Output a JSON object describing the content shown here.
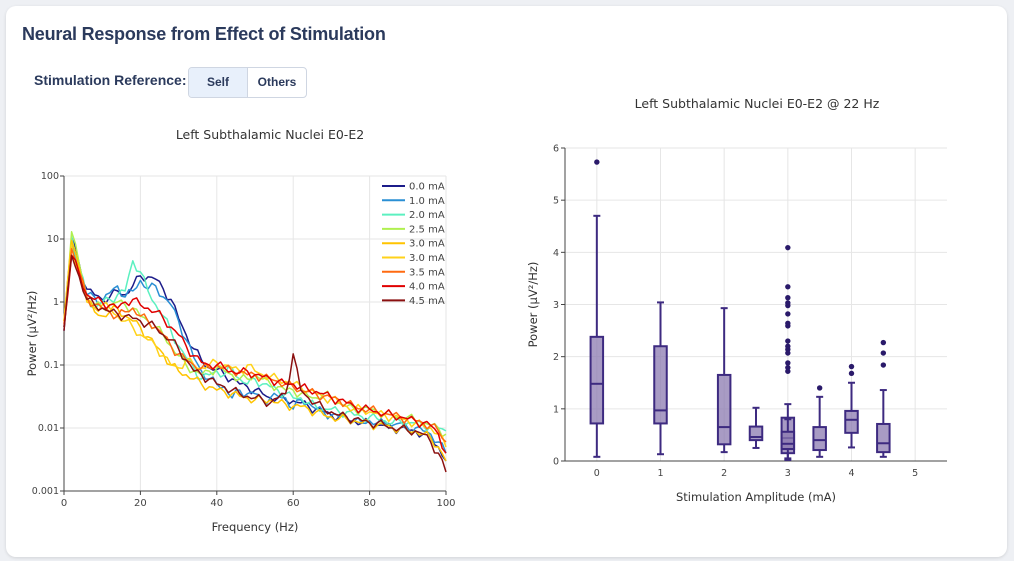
{
  "header": {
    "title": "Neural Response from Effect of Stimulation",
    "reference_label": "Stimulation Reference:",
    "options": [
      {
        "label": "Self",
        "selected": true
      },
      {
        "label": "Others",
        "selected": false
      }
    ]
  },
  "chart_data": [
    {
      "type": "line",
      "title": "Left Subthalamic Nuclei E0-E2",
      "xlabel": "Frequency (Hz)",
      "ylabel": "Power (μV²/Hz)",
      "xlim": [
        0,
        100
      ],
      "ylim": [
        0.001,
        100
      ],
      "yscale": "log",
      "xticks": [
        "0",
        "20",
        "40",
        "60",
        "80",
        "100"
      ],
      "yticks": [
        "0.001",
        "0.01",
        "0.1",
        "1",
        "10",
        "100"
      ],
      "grid": true,
      "legend_position": "top-right",
      "x_step_hz": 2,
      "series": [
        {
          "name": "0.0 mA",
          "color": "#1c1c8a",
          "values": [
            0.35,
            10.5,
            4,
            1.6,
            1.3,
            1.1,
            1.2,
            1.5,
            1.3,
            1.8,
            2.6,
            2.5,
            2.3,
            1.6,
            1.1,
            0.55,
            0.3,
            0.18,
            0.12,
            0.09,
            0.085,
            0.07,
            0.06,
            0.05,
            0.045,
            0.04,
            0.035,
            0.03,
            0.03,
            0.028,
            0.027,
            0.025,
            0.022,
            0.02,
            0.018,
            0.016,
            0.015,
            0.014,
            0.013,
            0.012,
            0.012,
            0.011,
            0.011,
            0.01,
            0.01,
            0.009,
            0.009,
            0.008,
            0.007,
            0.005,
            0.003
          ]
        },
        {
          "name": "1.0 mA",
          "color": "#2a8fd4",
          "values": [
            0.4,
            9,
            3.5,
            1.3,
            1.2,
            1.0,
            1.4,
            1.8,
            1.2,
            1.5,
            2.2,
            1.6,
            1.8,
            1.2,
            0.9,
            0.5,
            0.25,
            0.13,
            0.08,
            0.06,
            0.05,
            0.045,
            0.03,
            0.04,
            0.035,
            0.035,
            0.028,
            0.03,
            0.032,
            0.03,
            0.02,
            0.028,
            0.025,
            0.02,
            0.018,
            0.016,
            0.015,
            0.015,
            0.013,
            0.012,
            0.013,
            0.012,
            0.012,
            0.011,
            0.012,
            0.01,
            0.01,
            0.009,
            0.008,
            0.006,
            0.004
          ]
        },
        {
          "name": "2.0 mA",
          "color": "#5cf0c0",
          "values": [
            0.4,
            11,
            3.5,
            1.2,
            0.8,
            1.0,
            1.1,
            1.3,
            1.5,
            4.5,
            3,
            1.5,
            0.9,
            0.6,
            0.35,
            0.2,
            0.13,
            0.09,
            0.06,
            0.07,
            0.08,
            0.07,
            0.09,
            0.06,
            0.05,
            0.06,
            0.05,
            0.045,
            0.04,
            0.035,
            0.03,
            0.03,
            0.025,
            0.022,
            0.02,
            0.02,
            0.018,
            0.018,
            0.016,
            0.015,
            0.015,
            0.014,
            0.013,
            0.012,
            0.013,
            0.012,
            0.012,
            0.011,
            0.011,
            0.01,
            0.009
          ]
        },
        {
          "name": "2.5 mA",
          "color": "#b0f050",
          "values": [
            0.5,
            13,
            4,
            1.2,
            0.9,
            0.8,
            0.9,
            1.0,
            0.9,
            0.8,
            0.6,
            0.5,
            0.4,
            0.3,
            0.2,
            0.14,
            0.1,
            0.08,
            0.07,
            0.08,
            0.09,
            0.08,
            0.07,
            0.06,
            0.06,
            0.07,
            0.06,
            0.05,
            0.045,
            0.04,
            0.04,
            0.035,
            0.032,
            0.03,
            0.035,
            0.03,
            0.025,
            0.022,
            0.02,
            0.02,
            0.02,
            0.018,
            0.017,
            0.016,
            0.015,
            0.015,
            0.013,
            0.012,
            0.011,
            0.01,
            0.008
          ]
        },
        {
          "name": "3.0 mA",
          "color": "#ffc400",
          "values": [
            0.5,
            9.5,
            3.5,
            1.1,
            0.7,
            0.6,
            0.7,
            0.8,
            0.6,
            0.5,
            0.4,
            0.28,
            0.2,
            0.15,
            0.1,
            0.08,
            0.07,
            0.06,
            0.05,
            0.045,
            0.04,
            0.038,
            0.035,
            0.032,
            0.03,
            0.028,
            0.028,
            0.028,
            0.025,
            0.024,
            0.022,
            0.022,
            0.02,
            0.018,
            0.016,
            0.015,
            0.014,
            0.014,
            0.013,
            0.012,
            0.012,
            0.011,
            0.011,
            0.01,
            0.01,
            0.009,
            0.009,
            0.008,
            0.007,
            0.005,
            0.003
          ]
        },
        {
          "name": "3.0 mA",
          "color": "#ffd21a",
          "values": [
            0.5,
            8,
            3,
            1.0,
            0.8,
            0.9,
            0.8,
            0.6,
            0.5,
            0.4,
            0.3,
            0.25,
            0.2,
            0.14,
            0.1,
            0.09,
            0.12,
            0.1,
            0.09,
            0.1,
            0.11,
            0.1,
            0.09,
            0.08,
            0.1,
            0.08,
            0.07,
            0.065,
            0.06,
            0.055,
            0.05,
            0.045,
            0.04,
            0.035,
            0.03,
            0.03,
            0.025,
            0.022,
            0.02,
            0.02,
            0.018,
            0.017,
            0.016,
            0.015,
            0.014,
            0.013,
            0.012,
            0.011,
            0.01,
            0.008,
            0.005
          ]
        },
        {
          "name": "3.5 mA",
          "color": "#ff6a10",
          "values": [
            0.45,
            7,
            3,
            1.2,
            0.9,
            0.8,
            0.7,
            0.6,
            0.7,
            0.8,
            0.6,
            0.5,
            0.4,
            0.3,
            0.2,
            0.15,
            0.12,
            0.1,
            0.09,
            0.09,
            0.1,
            0.09,
            0.08,
            0.08,
            0.07,
            0.07,
            0.065,
            0.06,
            0.055,
            0.05,
            0.045,
            0.04,
            0.038,
            0.035,
            0.032,
            0.03,
            0.028,
            0.025,
            0.022,
            0.02,
            0.02,
            0.018,
            0.017,
            0.016,
            0.015,
            0.014,
            0.013,
            0.012,
            0.011,
            0.009,
            0.006
          ]
        },
        {
          "name": "4.0 mA",
          "color": "#e00000",
          "values": [
            0.4,
            5.5,
            2.8,
            1.3,
            1.1,
            1.0,
            0.9,
            0.8,
            1.0,
            1.1,
            0.9,
            0.8,
            0.7,
            0.55,
            0.4,
            0.3,
            0.2,
            0.14,
            0.11,
            0.1,
            0.1,
            0.09,
            0.08,
            0.075,
            0.08,
            0.07,
            0.065,
            0.06,
            0.055,
            0.05,
            0.05,
            0.045,
            0.04,
            0.038,
            0.035,
            0.03,
            0.028,
            0.025,
            0.022,
            0.02,
            0.02,
            0.018,
            0.017,
            0.016,
            0.015,
            0.014,
            0.013,
            0.012,
            0.011,
            0.008,
            0.004
          ]
        },
        {
          "name": "4.5 mA",
          "color": "#8b1010",
          "values": [
            0.35,
            5.5,
            2.5,
            1.1,
            0.9,
            0.8,
            0.7,
            0.65,
            0.6,
            0.55,
            0.5,
            0.45,
            0.4,
            0.3,
            0.25,
            0.18,
            0.12,
            0.08,
            0.07,
            0.06,
            0.05,
            0.045,
            0.04,
            0.035,
            0.032,
            0.03,
            0.028,
            0.025,
            0.03,
            0.035,
            0.15,
            0.04,
            0.03,
            0.025,
            0.02,
            0.018,
            0.016,
            0.015,
            0.014,
            0.013,
            0.012,
            0.012,
            0.011,
            0.01,
            0.01,
            0.009,
            0.009,
            0.008,
            0.006,
            0.004,
            0.002
          ]
        }
      ]
    },
    {
      "type": "box",
      "title": "Left Subthalamic Nuclei E0-E2  @ 22 Hz",
      "xlabel": "Stimulation Amplitude (mA)",
      "ylabel": "Power (μV²/Hz)",
      "xlim": [
        -0.5,
        5.5
      ],
      "ylim": [
        0,
        6
      ],
      "xticks": [
        "0",
        "1",
        "2",
        "3",
        "4",
        "5"
      ],
      "yticks": [
        "0",
        "1",
        "2",
        "3",
        "4",
        "5",
        "6"
      ],
      "grid": true,
      "color": "#3d2a80",
      "fill": "#8b7ab0",
      "boxes": [
        {
          "x": 0,
          "low": 0.08,
          "q1": 0.72,
          "median": 1.48,
          "q3": 2.38,
          "high": 4.7,
          "outliers": [
            5.73
          ]
        },
        {
          "x": 1,
          "low": 0.13,
          "q1": 0.72,
          "median": 0.97,
          "q3": 2.2,
          "high": 3.04,
          "outliers": []
        },
        {
          "x": 2,
          "low": 0.17,
          "q1": 0.32,
          "median": 0.65,
          "q3": 1.65,
          "high": 2.93,
          "outliers": []
        },
        {
          "x": 2.5,
          "low": 0.25,
          "q1": 0.4,
          "median": 0.46,
          "q3": 0.66,
          "high": 1.02,
          "outliers": []
        },
        {
          "x": 3,
          "low": 0.02,
          "q1": 0.15,
          "median": 0.44,
          "q3": 0.83,
          "high": 1.09,
          "outliers": [
            4.09,
            3.34,
            3.13,
            3.03,
            2.98,
            2.82,
            2.64,
            2.59,
            2.3,
            2.2,
            2.14,
            2.07,
            1.88,
            1.79,
            1.72
          ]
        },
        {
          "x": 3,
          "low": 0.05,
          "q1": 0.23,
          "median": 0.33,
          "q3": 0.56,
          "high": 0.8,
          "outliers": []
        },
        {
          "x": 3.5,
          "low": 0.08,
          "q1": 0.21,
          "median": 0.4,
          "q3": 0.65,
          "high": 1.23,
          "outliers": [
            1.4
          ]
        },
        {
          "x": 4,
          "low": 0.26,
          "q1": 0.54,
          "median": 0.79,
          "q3": 0.96,
          "high": 1.5,
          "outliers": [
            1.81,
            1.68
          ]
        },
        {
          "x": 4.5,
          "low": 0.08,
          "q1": 0.17,
          "median": 0.34,
          "q3": 0.71,
          "high": 1.36,
          "outliers": [
            2.27,
            2.07,
            1.84
          ]
        }
      ]
    }
  ]
}
